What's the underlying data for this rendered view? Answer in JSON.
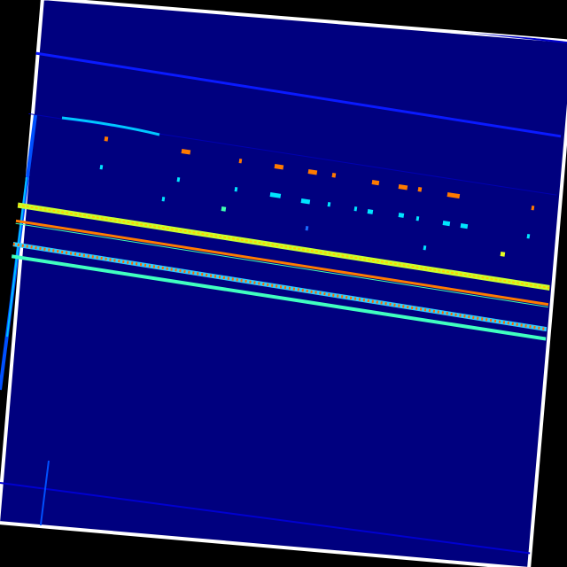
{
  "image": {
    "background": "#000000",
    "frame_color": "#ffffff",
    "field_color": "#00007f",
    "rotation_deg": 4.7,
    "colormap": "jet",
    "colors": {
      "blue": "#0000ff",
      "light_blue": "#1a6cff",
      "cyan": "#00e5ff",
      "green": "#40ffb0",
      "yellow": "#e8ff20",
      "orange": "#ff7a00",
      "red": "#ff3000"
    }
  }
}
